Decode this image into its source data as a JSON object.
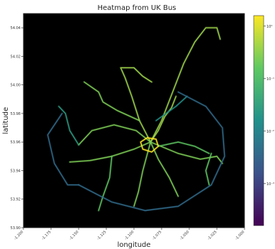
{
  "chart_data": {
    "type": "heatmap",
    "title": "Heatmap from UK Bus",
    "xlabel": "longitude",
    "ylabel": "latitude",
    "xlim": [
      -1.2,
      -1.0
    ],
    "ylim": [
      53.9,
      54.05
    ],
    "xticks": [
      "-1.200",
      "-1.175",
      "-1.150",
      "-1.125",
      "-1.100",
      "-1.075",
      "-1.050",
      "-1.025",
      "-1.000"
    ],
    "yticks": [
      "53.90",
      "53.92",
      "53.94",
      "53.96",
      "53.98",
      "54.00",
      "54.02",
      "54.04"
    ],
    "colorbar": {
      "scale": "log",
      "colors": [
        "#440154",
        "#3b528b",
        "#21918c",
        "#5ec962",
        "#fde725"
      ],
      "tick_labels": [
        "10⁻³",
        "10⁻²",
        "10⁻¹",
        "10⁰"
      ],
      "tick_values": [
        -3,
        -2,
        -1,
        0
      ],
      "range_log": [
        -3.8,
        0.2
      ]
    },
    "background": "#000000",
    "grid": false,
    "routes": [
      {
        "level": 0.85,
        "points": [
          [
            -1.085,
            53.96
          ],
          [
            -1.075,
            53.975
          ],
          [
            -1.065,
            53.995
          ],
          [
            -1.055,
            54.015
          ],
          [
            -1.045,
            54.03
          ],
          [
            -1.035,
            54.04
          ],
          [
            -1.025,
            54.04
          ],
          [
            -1.022,
            54.032
          ]
        ]
      },
      {
        "level": 0.85,
        "points": [
          [
            -1.085,
            53.96
          ],
          [
            -1.078,
            53.968
          ],
          [
            -1.072,
            53.978
          ],
          [
            -1.066,
            53.984
          ],
          [
            -1.062,
            53.992
          ]
        ]
      },
      {
        "level": 0.85,
        "points": [
          [
            -1.085,
            53.96
          ],
          [
            -1.095,
            53.975
          ],
          [
            -1.102,
            53.992
          ],
          [
            -1.108,
            54.005
          ],
          [
            -1.112,
            54.012
          ],
          [
            -1.1,
            54.012
          ],
          [
            -1.092,
            54.006
          ],
          [
            -1.084,
            54.002
          ]
        ]
      },
      {
        "level": 0.8,
        "points": [
          [
            -1.095,
            53.975
          ],
          [
            -1.115,
            53.982
          ],
          [
            -1.128,
            53.988
          ],
          [
            -1.132,
            53.995
          ],
          [
            -1.145,
            54.002
          ]
        ]
      },
      {
        "level": 0.8,
        "points": [
          [
            -1.085,
            53.96
          ],
          [
            -1.1,
            53.955
          ],
          [
            -1.12,
            53.95
          ],
          [
            -1.14,
            53.947
          ],
          [
            -1.158,
            53.946
          ]
        ]
      },
      {
        "level": 0.75,
        "points": [
          [
            -1.12,
            53.95
          ],
          [
            -1.122,
            53.935
          ],
          [
            -1.128,
            53.922
          ],
          [
            -1.132,
            53.912
          ]
        ]
      },
      {
        "level": 0.8,
        "points": [
          [
            -1.085,
            53.96
          ],
          [
            -1.092,
            53.94
          ],
          [
            -1.096,
            53.925
          ],
          [
            -1.1,
            53.915
          ]
        ]
      },
      {
        "level": 0.8,
        "points": [
          [
            -1.085,
            53.96
          ],
          [
            -1.078,
            53.948
          ],
          [
            -1.068,
            53.935
          ],
          [
            -1.06,
            53.922
          ]
        ]
      },
      {
        "level": 0.8,
        "points": [
          [
            -1.085,
            53.96
          ],
          [
            -1.06,
            53.952
          ],
          [
            -1.04,
            53.948
          ],
          [
            -1.025,
            53.95
          ],
          [
            -1.02,
            53.945
          ]
        ]
      },
      {
        "level": 0.75,
        "points": [
          [
            -1.078,
            53.957
          ],
          [
            -1.06,
            53.96
          ],
          [
            -1.045,
            53.957
          ],
          [
            -1.032,
            53.952
          ]
        ]
      },
      {
        "level": 0.75,
        "points": [
          [
            -1.03,
            53.952
          ],
          [
            -1.035,
            53.94
          ],
          [
            -1.032,
            53.93
          ]
        ]
      },
      {
        "level": 0.8,
        "points": [
          [
            -1.085,
            53.96
          ],
          [
            -1.098,
            53.968
          ],
          [
            -1.118,
            53.972
          ],
          [
            -1.138,
            53.968
          ],
          [
            -1.15,
            53.958
          ]
        ]
      },
      {
        "level": 0.55,
        "points": [
          [
            -1.15,
            53.958
          ],
          [
            -1.158,
            53.968
          ],
          [
            -1.162,
            53.98
          ],
          [
            -1.168,
            53.985
          ]
        ]
      },
      {
        "level": 0.5,
        "points": [
          [
            -1.08,
            53.975
          ],
          [
            -1.062,
            53.985
          ],
          [
            -1.052,
            53.992
          ]
        ]
      },
      {
        "level": 1.0,
        "points": [
          [
            -1.092,
            53.955
          ],
          [
            -1.084,
            53.953
          ],
          [
            -1.078,
            53.957
          ],
          [
            -1.08,
            53.962
          ],
          [
            -1.088,
            53.963
          ],
          [
            -1.094,
            53.96
          ],
          [
            -1.092,
            53.955
          ]
        ]
      },
      {
        "level": 0.35,
        "points": [
          [
            -1.15,
            53.93
          ],
          [
            -1.12,
            53.918
          ],
          [
            -1.09,
            53.912
          ],
          [
            -1.06,
            53.915
          ],
          [
            -1.03,
            53.93
          ],
          [
            -1.018,
            53.95
          ],
          [
            -1.02,
            53.97
          ],
          [
            -1.035,
            53.985
          ],
          [
            -1.06,
            53.995
          ]
        ]
      },
      {
        "level": 0.35,
        "points": [
          [
            -1.165,
            53.98
          ],
          [
            -1.178,
            53.965
          ],
          [
            -1.172,
            53.945
          ],
          [
            -1.16,
            53.93
          ],
          [
            -1.15,
            53.93
          ]
        ]
      }
    ]
  }
}
